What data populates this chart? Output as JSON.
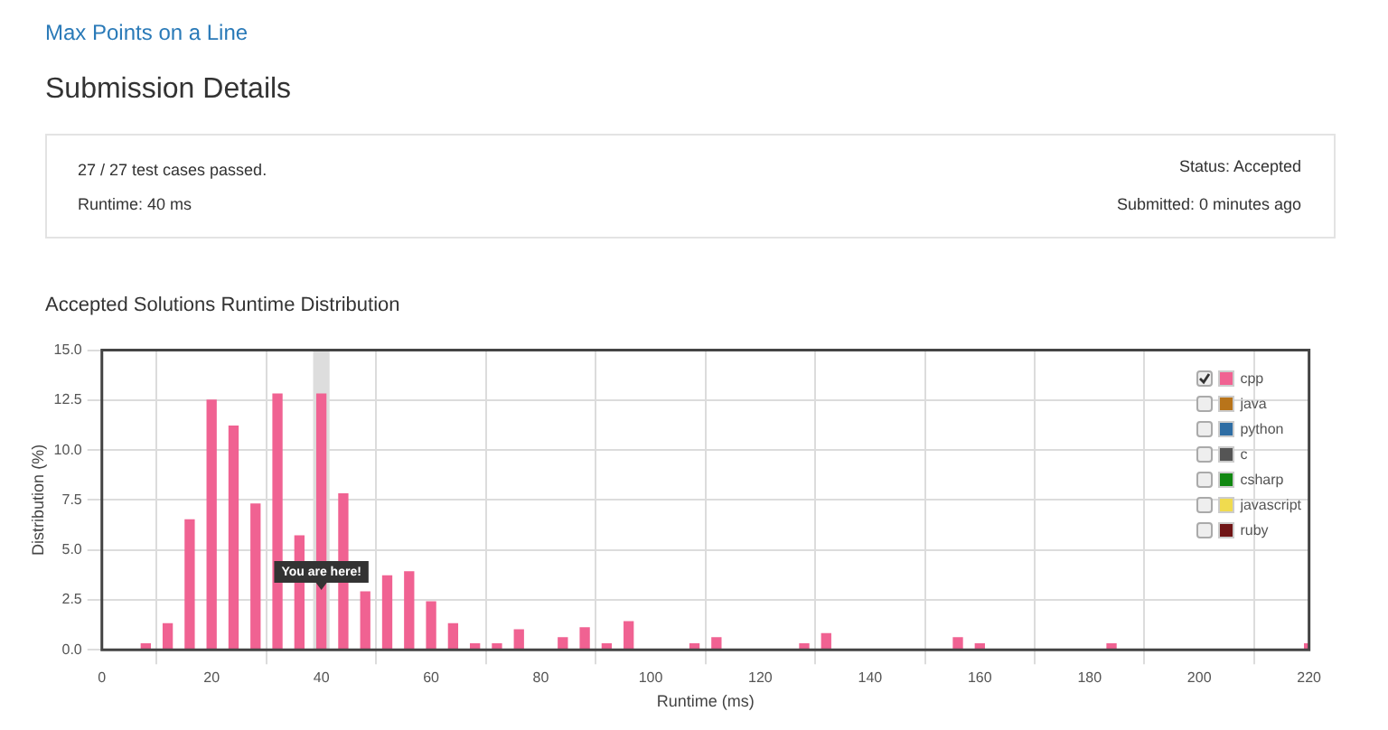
{
  "chart_data": {
    "type": "bar",
    "title": "Accepted Solutions Runtime Distribution",
    "xlabel": "Runtime (ms)",
    "ylabel": "Distribution (%)",
    "x": [
      8,
      12,
      16,
      20,
      24,
      28,
      32,
      36,
      40,
      44,
      48,
      52,
      56,
      60,
      64,
      68,
      72,
      76,
      84,
      88,
      92,
      96,
      108,
      112,
      128,
      132,
      156,
      160,
      184,
      220
    ],
    "series": [
      {
        "name": "cpp",
        "color": "#f06292",
        "values": [
          0.3,
          1.3,
          6.5,
          12.5,
          11.2,
          7.3,
          12.8,
          5.7,
          12.8,
          7.8,
          2.9,
          3.7,
          3.9,
          2.4,
          1.3,
          0.3,
          0.3,
          1.0,
          0.6,
          1.1,
          0.3,
          1.4,
          0.3,
          0.6,
          0.3,
          0.8,
          0.6,
          0.3,
          0.3,
          0.3
        ]
      },
      {
        "name": "java",
        "color": "#b8741a",
        "values": [
          null,
          null,
          null,
          null,
          null,
          null,
          null,
          null,
          null,
          null,
          null,
          null,
          null,
          null,
          null,
          null,
          null,
          null,
          null,
          null,
          null,
          null,
          null,
          null,
          null,
          null,
          null,
          null,
          null,
          null
        ]
      },
      {
        "name": "python",
        "color": "#2e6da4",
        "values": [
          null,
          null,
          null,
          null,
          null,
          null,
          null,
          null,
          null,
          null,
          null,
          null,
          null,
          null,
          null,
          null,
          null,
          null,
          null,
          null,
          null,
          null,
          null,
          null,
          null,
          null,
          null,
          null,
          null,
          null
        ]
      },
      {
        "name": "c",
        "color": "#555555",
        "values": [
          null,
          null,
          null,
          null,
          null,
          null,
          null,
          null,
          null,
          null,
          null,
          null,
          null,
          null,
          null,
          null,
          null,
          null,
          null,
          null,
          null,
          null,
          null,
          null,
          null,
          null,
          null,
          null,
          null,
          null
        ]
      },
      {
        "name": "csharp",
        "color": "#118811",
        "values": [
          null,
          null,
          null,
          null,
          null,
          null,
          null,
          null,
          null,
          null,
          null,
          null,
          null,
          null,
          null,
          null,
          null,
          null,
          null,
          null,
          null,
          null,
          null,
          null,
          null,
          null,
          null,
          null,
          null,
          null
        ]
      },
      {
        "name": "javascript",
        "color": "#f0db4f",
        "values": [
          null,
          null,
          null,
          null,
          null,
          null,
          null,
          null,
          null,
          null,
          null,
          null,
          null,
          null,
          null,
          null,
          null,
          null,
          null,
          null,
          null,
          null,
          null,
          null,
          null,
          null,
          null,
          null,
          null,
          null
        ]
      },
      {
        "name": "ruby",
        "color": "#701516",
        "values": [
          null,
          null,
          null,
          null,
          null,
          null,
          null,
          null,
          null,
          null,
          null,
          null,
          null,
          null,
          null,
          null,
          null,
          null,
          null,
          null,
          null,
          null,
          null,
          null,
          null,
          null,
          null,
          null,
          null,
          null
        ]
      }
    ],
    "xlim": [
      0,
      220
    ],
    "xticks": [
      0,
      20,
      40,
      60,
      80,
      100,
      120,
      140,
      160,
      180,
      200,
      220
    ],
    "ylim": [
      0,
      15
    ],
    "yticks": [
      {
        "value": 0,
        "label": "0.0"
      },
      {
        "value": 2.5,
        "label": "2.5"
      },
      {
        "value": 5,
        "label": "5.0"
      },
      {
        "value": 7.5,
        "label": "7.5"
      },
      {
        "value": 10,
        "label": "10.0"
      },
      {
        "value": 12.5,
        "label": "12.5"
      },
      {
        "value": 15,
        "label": "15.0"
      }
    ],
    "grid": true,
    "legend": "top right",
    "bands": [
      {
        "axis": "x",
        "from": 38.5,
        "to": 41.5,
        "color": "#dddddd"
      }
    ],
    "annotations": [
      {
        "text": "You are here!",
        "x": 40,
        "y": 3.9
      },
      "Max Points on a Line",
      "Submission Details",
      "27 / 27 test cases passed.",
      "Runtime: 40 ms",
      "Status: Accepted",
      "Submitted: 0 minutes ago"
    ]
  }
}
